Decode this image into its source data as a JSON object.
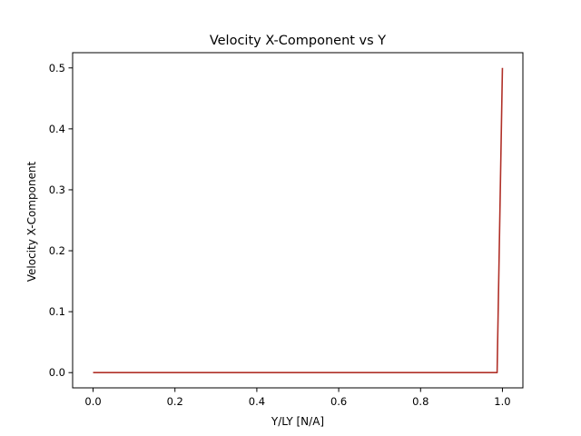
{
  "chart_data": {
    "type": "line",
    "title": "Velocity X-Component vs Y",
    "xlabel": "Y/LY [N/A]",
    "ylabel": "Velocity X-Component",
    "xlim": [
      -0.05,
      1.05
    ],
    "ylim": [
      -0.025,
      0.525
    ],
    "xticks": [
      0.0,
      0.2,
      0.4,
      0.6,
      0.8,
      1.0
    ],
    "xtick_labels": [
      "0.0",
      "0.2",
      "0.4",
      "0.6",
      "0.8",
      "1.0"
    ],
    "yticks": [
      0.0,
      0.1,
      0.2,
      0.3,
      0.4,
      0.5
    ],
    "ytick_labels": [
      "0.0",
      "0.1",
      "0.2",
      "0.3",
      "0.4",
      "0.5"
    ],
    "grid": false,
    "series": [
      {
        "color": "#b03028",
        "x": [
          0.0,
          0.1,
          0.2,
          0.3,
          0.4,
          0.5,
          0.6,
          0.7,
          0.8,
          0.9,
          0.987,
          1.0
        ],
        "y": [
          0.0,
          0.0,
          0.0,
          0.0,
          0.0,
          0.0,
          0.0,
          0.0,
          0.0,
          0.0,
          0.0,
          0.5
        ]
      }
    ]
  }
}
